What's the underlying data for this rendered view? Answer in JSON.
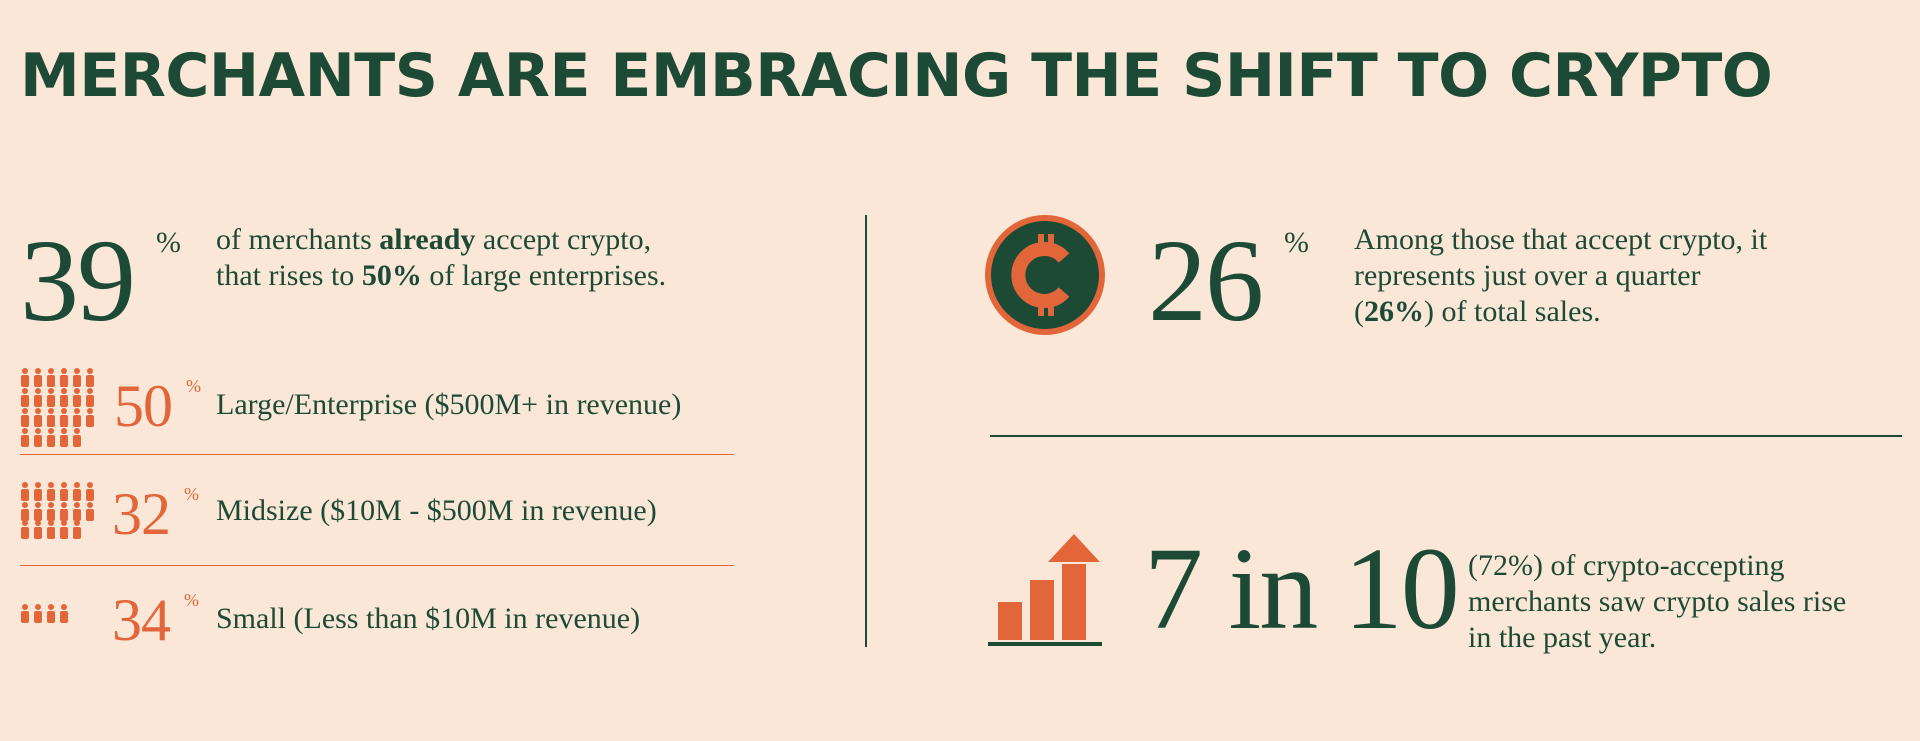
{
  "title": "MERCHANTS ARE EMBRACING THE SHIFT TO CRYPTO",
  "stat_accept": {
    "value": "39",
    "unit": "%",
    "text_1": "of merchants ",
    "text_bold_1": "already",
    "text_2": " accept crypto, that rises to ",
    "text_bold_2": "50%",
    "text_3": " of large enterprises."
  },
  "segments": [
    {
      "value": "50",
      "unit": "%",
      "label": "Large/Enterprise ($500M+ in revenue)",
      "icon": "people-group-icon"
    },
    {
      "value": "32",
      "unit": "%",
      "label": "Midsize ($10M - $500M in revenue)",
      "icon": "people-group-icon"
    },
    {
      "value": "34",
      "unit": "%",
      "label": "Small (Less than $10M in revenue)",
      "icon": "people-group-icon"
    }
  ],
  "stat_sales": {
    "value": "26",
    "unit": "%",
    "text_1": "Among those that accept crypto, it represents just over a quarter (",
    "text_bold": "26%",
    "text_2": ") of total sales.",
    "icon": "crypto-coin-icon"
  },
  "stat_growth": {
    "value": "7 in 10",
    "text": "(72%) of crypto-accepting merchants saw crypto sales rise in the past year.",
    "icon": "growth-chart-icon"
  },
  "colors": {
    "background": "#fae7d7",
    "green": "#1d4a34",
    "orange": "#e3663a"
  }
}
